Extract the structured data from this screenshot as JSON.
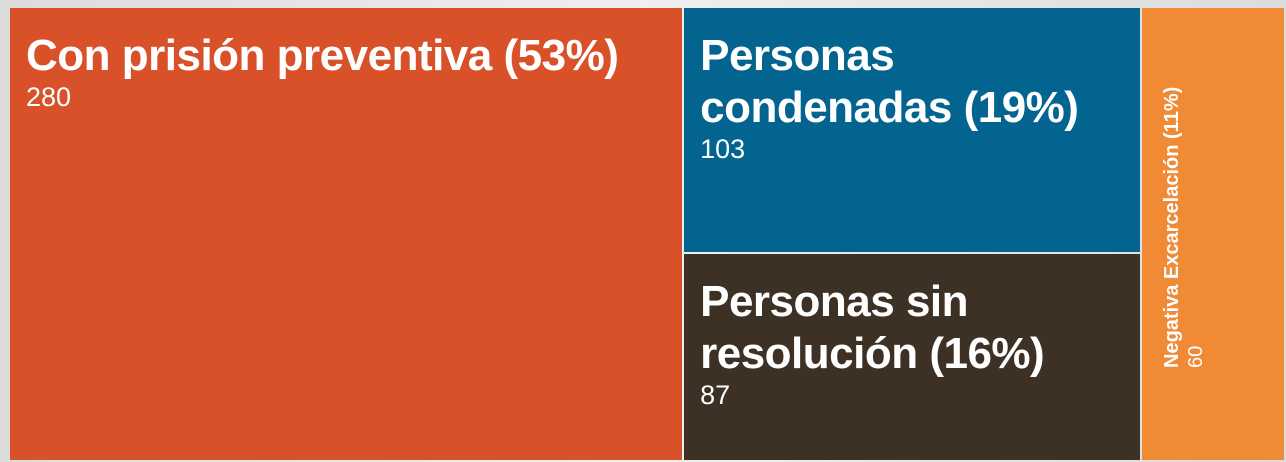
{
  "chart_data": {
    "type": "treemap",
    "labels": [
      "Con prisión preventiva (53%)",
      "Personas condenadas (19%)",
      "Personas sin resolución (16%)",
      "Negativa Excarcelación (11%)"
    ],
    "values": [
      280,
      103,
      87,
      60
    ],
    "colors": [
      "#d95128",
      "#036490",
      "#3c3124",
      "#f08a35"
    ]
  }
}
